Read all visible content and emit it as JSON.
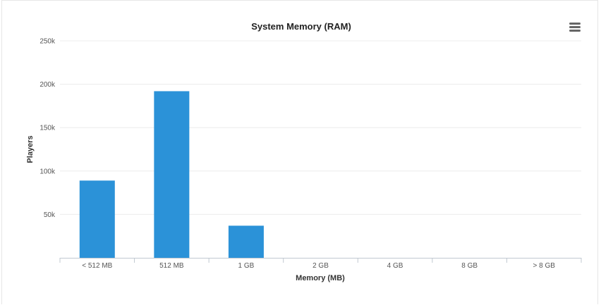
{
  "chart_data": {
    "type": "bar",
    "title": "System Memory (RAM)",
    "xlabel": "Memory (MB)",
    "ylabel": "Players",
    "categories": [
      "< 512 MB",
      "512 MB",
      "1 GB",
      "2 GB",
      "4 GB",
      "8 GB",
      "> 8 GB"
    ],
    "values": [
      89000,
      192000,
      37000,
      0,
      0,
      0,
      0
    ],
    "ylim": [
      0,
      250000
    ],
    "yticks": [
      {
        "value": 50000,
        "label": "50k"
      },
      {
        "value": 100000,
        "label": "100k"
      },
      {
        "value": 150000,
        "label": "150k"
      },
      {
        "value": 200000,
        "label": "200k"
      },
      {
        "value": 250000,
        "label": "250k"
      }
    ],
    "grid": true,
    "bar_color": "#2b92d8",
    "grid_color": "#ececec",
    "axis_color": "#c0c8d0"
  },
  "menu": {
    "icon": "hamburger-menu-icon"
  }
}
